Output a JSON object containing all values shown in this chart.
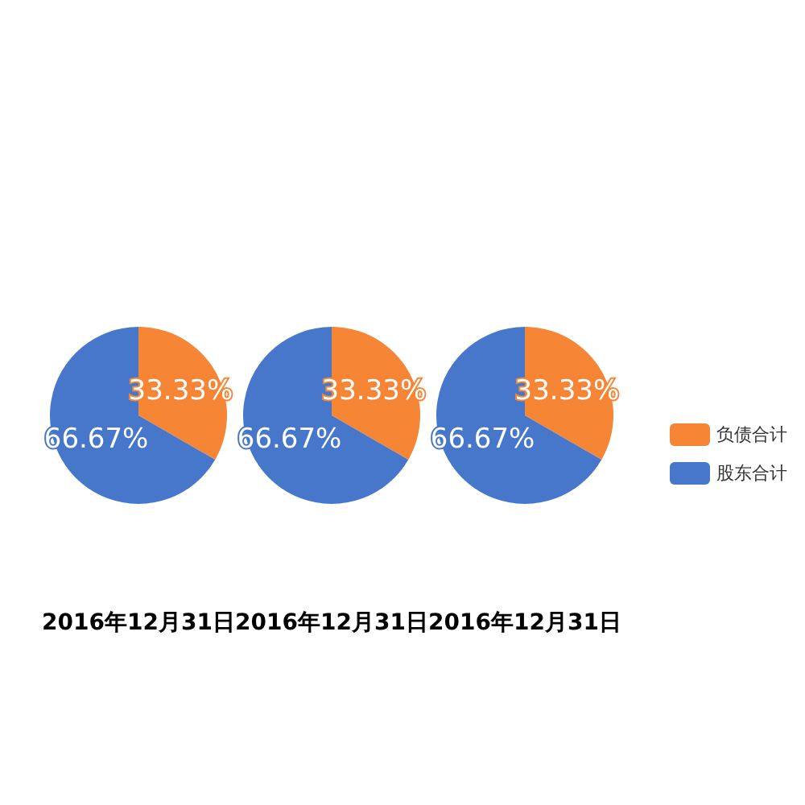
{
  "chart_data": [
    {
      "type": "pie",
      "title": "2016年12月31日",
      "values": [
        33.33,
        66.67
      ],
      "colors": [
        "#f68536",
        "#4677cb"
      ],
      "value_labels": [
        "33.33%",
        "66.67%"
      ]
    },
    {
      "type": "pie",
      "title": "2016年12月31日",
      "values": [
        33.33,
        66.67
      ],
      "colors": [
        "#f68536",
        "#4677cb"
      ],
      "value_labels": [
        "33.33%",
        "66.67%"
      ]
    },
    {
      "type": "pie",
      "title": "2016年12月31日",
      "categories": [
        "负债合计",
        "股东合计"
      ],
      "values": [
        33.33,
        66.67
      ],
      "colors": [
        "#f68536",
        "#4677cb"
      ],
      "value_labels": [
        "33.33%",
        "66.67%"
      ],
      "legend": "right"
    }
  ]
}
